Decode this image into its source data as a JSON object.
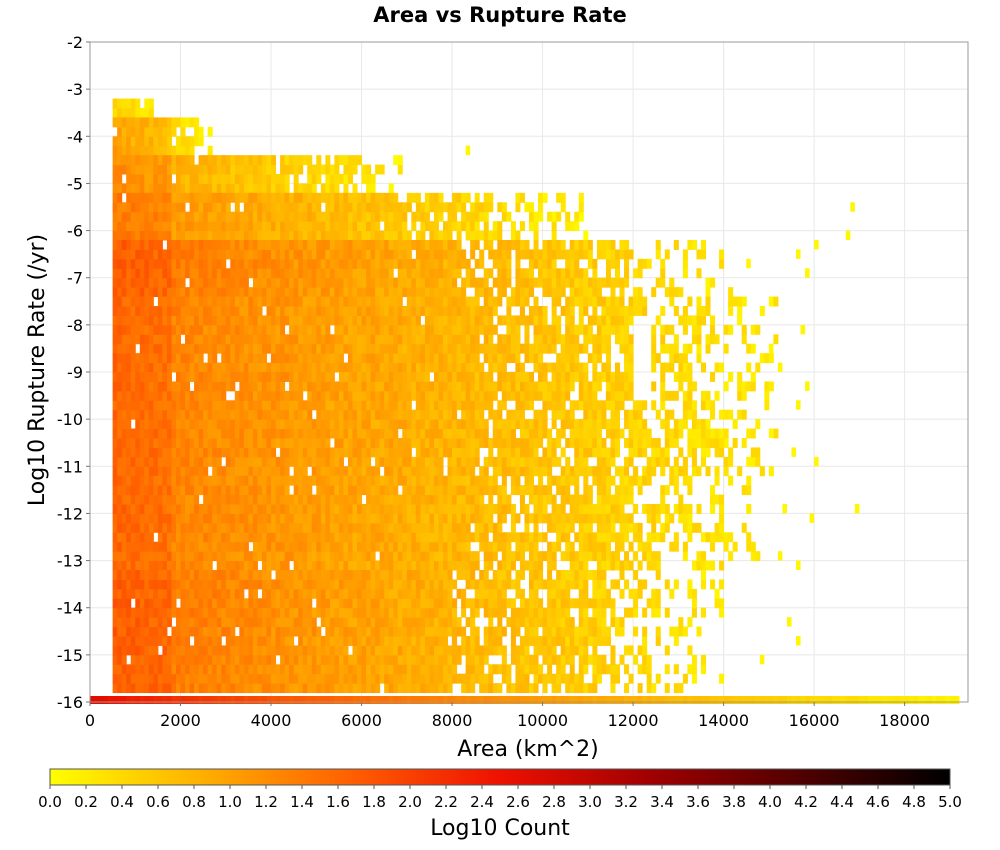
{
  "chart_data": {
    "type": "heatmap",
    "title": "Area vs Rupture Rate",
    "xlabel": "Area (km^2)",
    "ylabel": "Log10 Rupture Rate (/yr)",
    "xlim": [
      0,
      19400
    ],
    "ylim": [
      -16,
      -2
    ],
    "x_ticks": [
      0,
      2000,
      4000,
      6000,
      8000,
      10000,
      12000,
      14000,
      16000,
      18000
    ],
    "y_ticks": [
      -2,
      -3,
      -4,
      -5,
      -6,
      -7,
      -8,
      -9,
      -10,
      -11,
      -12,
      -13,
      -14,
      -15,
      -16
    ],
    "grid": true,
    "bin_width_x": 100,
    "bin_height_y": 0.2,
    "colorbar": {
      "label": "Log10 Count",
      "range": [
        0.0,
        5.0
      ],
      "ticks": [
        "0.0",
        "0.2",
        "0.4",
        "0.6",
        "0.8",
        "1.0",
        "1.2",
        "1.4",
        "1.6",
        "1.8",
        "2.0",
        "2.2",
        "2.4",
        "2.6",
        "2.8",
        "3.0",
        "3.2",
        "3.4",
        "3.6",
        "3.8",
        "4.0",
        "4.2",
        "4.4",
        "4.6",
        "4.8",
        "5.0"
      ],
      "colors": [
        "#ffff00",
        "#ffb000",
        "#ff6000",
        "#ee1100",
        "#a00000",
        "#500000",
        "#000000"
      ]
    },
    "density_profiles": [
      {
        "y_range": [
          -3.6,
          -3.2
        ],
        "x_max": 1400,
        "peak_log10_count": 0.2
      },
      {
        "y_range": [
          -4.4,
          -3.6
        ],
        "x_max": 2800,
        "peak_log10_count": 0.8
      },
      {
        "y_range": [
          -5.2,
          -4.4
        ],
        "x_max": 7000,
        "peak_log10_count": 1.0
      },
      {
        "y_range": [
          -6.2,
          -5.2
        ],
        "x_max": 11000,
        "peak_log10_count": 1.2
      },
      {
        "y_range": [
          -7.4,
          -6.2
        ],
        "x_max": 14200,
        "peak_log10_count": 1.5
      },
      {
        "y_range": [
          -9.0,
          -7.4
        ],
        "x_max": 15200,
        "peak_log10_count": 1.4
      },
      {
        "y_range": [
          -11.2,
          -9.0
        ],
        "x_max": 15200,
        "peak_log10_count": 1.4
      },
      {
        "y_range": [
          -13.2,
          -11.2
        ],
        "x_max": 14800,
        "peak_log10_count": 1.4
      },
      {
        "y_range": [
          -15.8,
          -13.2
        ],
        "x_max": 14000,
        "peak_log10_count": 1.5
      }
    ],
    "baseline_row": {
      "y": -16,
      "x_range": [
        0,
        19200
      ],
      "log10_count_start": 2.7,
      "log10_count_end": 0.1
    },
    "outlier_points": [
      {
        "x": 8300,
        "y": -4.4
      },
      {
        "x": 16800,
        "y": -5.6
      },
      {
        "x": 16700,
        "y": -6.2
      },
      {
        "x": 16000,
        "y": -6.4
      },
      {
        "x": 15600,
        "y": -6.6
      },
      {
        "x": 14500,
        "y": -6.8
      },
      {
        "x": 15800,
        "y": -7.0
      },
      {
        "x": 15700,
        "y": -8.2
      },
      {
        "x": 14300,
        "y": -8.0
      },
      {
        "x": 15000,
        "y": -8.6
      },
      {
        "x": 15200,
        "y": -9.0
      },
      {
        "x": 15800,
        "y": -9.4
      },
      {
        "x": 15600,
        "y": -9.8
      },
      {
        "x": 15000,
        "y": -10.4
      },
      {
        "x": 15500,
        "y": -10.8
      },
      {
        "x": 16000,
        "y": -11.0
      },
      {
        "x": 15900,
        "y": -12.2
      },
      {
        "x": 16900,
        "y": -12.0
      },
      {
        "x": 15300,
        "y": -12.0
      },
      {
        "x": 15600,
        "y": -13.2
      },
      {
        "x": 15200,
        "y": -13.0
      },
      {
        "x": 15400,
        "y": -14.4
      },
      {
        "x": 15600,
        "y": -14.8
      },
      {
        "x": 14800,
        "y": -15.2
      }
    ],
    "gaps": [
      {
        "x_range": [
          12000,
          12400
        ],
        "y_range": [
          -9.8,
          -8.0
        ]
      },
      {
        "x_range": [
          12000,
          12400
        ],
        "y_range": [
          -6.6,
          -5.8
        ]
      }
    ]
  }
}
